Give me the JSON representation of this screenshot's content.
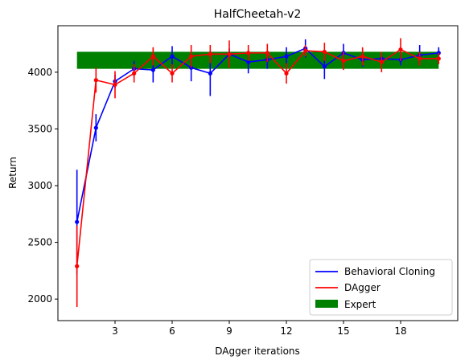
{
  "chart_data": {
    "type": "line",
    "title": "HalfCheetah-v2",
    "xlabel": "DAgger iterations",
    "ylabel": "Return",
    "xlim": [
      0,
      21
    ],
    "ylim": [
      1810,
      4410
    ],
    "xticks": [
      3,
      6,
      9,
      12,
      15,
      18
    ],
    "yticks": [
      2000,
      2500,
      3000,
      3500,
      4000
    ],
    "legend_position": "lower-right",
    "x": [
      1,
      2,
      3,
      4,
      5,
      6,
      7,
      8,
      9,
      10,
      11,
      12,
      13,
      14,
      15,
      16,
      17,
      18,
      19,
      20
    ],
    "series": [
      {
        "name": "Behavioral Cloning",
        "color": "#0000ff",
        "values": [
          2680,
          3510,
          3920,
          4030,
          4020,
          4140,
          4040,
          3990,
          4160,
          4090,
          4110,
          4140,
          4210,
          4050,
          4170,
          4110,
          4120,
          4110,
          4150,
          4170
        ],
        "errors": [
          460,
          120,
          60,
          70,
          110,
          90,
          120,
          200,
          50,
          100,
          80,
          80,
          80,
          110,
          80,
          60,
          50,
          50,
          90,
          50
        ]
      },
      {
        "name": "DAgger",
        "color": "#ff0000",
        "values": [
          2290,
          3930,
          3890,
          3990,
          4140,
          3990,
          4140,
          4160,
          4160,
          4170,
          4170,
          3990,
          4190,
          4180,
          4100,
          4140,
          4090,
          4200,
          4120,
          4120
        ],
        "errors": [
          360,
          110,
          120,
          80,
          80,
          80,
          100,
          80,
          120,
          70,
          80,
          90,
          50,
          80,
          80,
          80,
          90,
          100,
          60,
          50
        ]
      }
    ],
    "expert": {
      "name": "Expert",
      "color": "#008000",
      "range": [
        1,
        20
      ],
      "mean": 4100,
      "band": [
        4030,
        4180
      ]
    }
  }
}
